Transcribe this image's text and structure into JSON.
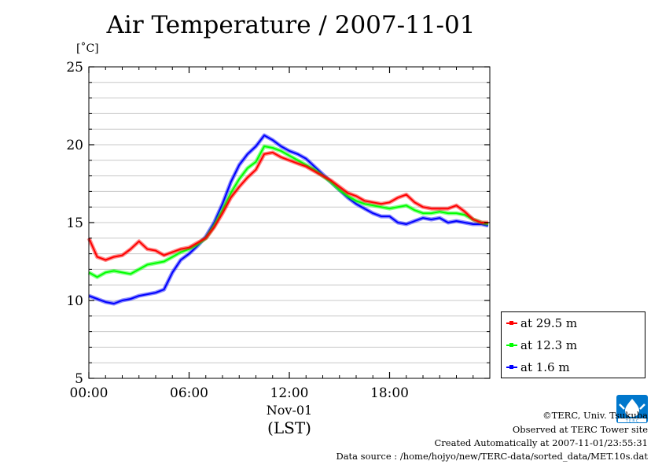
{
  "chart_data": {
    "type": "line",
    "title": "Air Temperature / 2007-11-01",
    "ylabel": "[˚C]",
    "xlabel": "(LST)",
    "x_date_label": "Nov-01",
    "x_ticks": [
      "00:00",
      "06:00",
      "12:00",
      "18:00"
    ],
    "x_tick_hours": [
      0,
      6,
      12,
      18
    ],
    "xlim_hours": [
      0,
      24
    ],
    "ylim": [
      5,
      25
    ],
    "y_ticks": [
      5,
      10,
      15,
      20,
      25
    ],
    "y_grid_step": 1,
    "grid": true,
    "legend_position": "bottom-right",
    "x_hours": [
      0,
      0.5,
      1,
      1.5,
      2,
      2.5,
      3,
      3.5,
      4,
      4.5,
      5,
      5.5,
      6,
      6.5,
      7,
      7.5,
      8,
      8.5,
      9,
      9.5,
      10,
      10.5,
      11,
      11.5,
      12,
      12.5,
      13,
      13.5,
      14,
      14.5,
      15,
      15.5,
      16,
      16.5,
      17,
      17.5,
      18,
      18.5,
      19,
      19.5,
      20,
      20.5,
      21,
      21.5,
      22,
      22.5,
      23,
      23.5,
      23.9
    ],
    "series": [
      {
        "name": "at 29.5 m",
        "color": "#ff0000",
        "values": [
          14.0,
          12.8,
          12.6,
          12.8,
          12.9,
          13.3,
          13.8,
          13.3,
          13.2,
          12.9,
          13.1,
          13.3,
          13.4,
          13.7,
          14.0,
          14.7,
          15.6,
          16.6,
          17.3,
          17.9,
          18.4,
          19.4,
          19.5,
          19.2,
          19.0,
          18.8,
          18.6,
          18.3,
          18.0,
          17.7,
          17.3,
          16.9,
          16.7,
          16.4,
          16.3,
          16.2,
          16.3,
          16.6,
          16.8,
          16.3,
          16.0,
          15.9,
          15.9,
          15.9,
          16.1,
          15.7,
          15.2,
          15.0,
          15.0
        ]
      },
      {
        "name": "at 12.3 m",
        "color": "#00ff00",
        "values": [
          11.8,
          11.5,
          11.8,
          11.9,
          11.8,
          11.7,
          12.0,
          12.3,
          12.4,
          12.5,
          12.8,
          13.1,
          13.3,
          13.6,
          14.0,
          14.8,
          15.8,
          16.9,
          17.8,
          18.5,
          18.9,
          19.9,
          19.8,
          19.6,
          19.3,
          19.0,
          18.7,
          18.4,
          18.0,
          17.6,
          17.1,
          16.7,
          16.4,
          16.2,
          16.1,
          16.0,
          15.9,
          16.0,
          16.1,
          15.8,
          15.6,
          15.6,
          15.7,
          15.6,
          15.6,
          15.5,
          15.2,
          15.0,
          14.9
        ]
      },
      {
        "name": "at 1.6 m",
        "color": "#0000ff",
        "values": [
          10.3,
          10.1,
          9.9,
          9.8,
          10.0,
          10.1,
          10.3,
          10.4,
          10.5,
          10.7,
          11.8,
          12.6,
          13.0,
          13.5,
          14.1,
          15.0,
          16.2,
          17.6,
          18.7,
          19.4,
          19.9,
          20.6,
          20.3,
          19.9,
          19.6,
          19.4,
          19.1,
          18.6,
          18.1,
          17.6,
          17.1,
          16.6,
          16.2,
          15.9,
          15.6,
          15.4,
          15.4,
          15.0,
          14.9,
          15.1,
          15.3,
          15.2,
          15.3,
          15.0,
          15.1,
          15.0,
          14.9,
          14.9,
          14.8
        ]
      }
    ]
  },
  "credits": {
    "copyright": "©TERC, Univ. Tsukuba",
    "site": "Observed at TERC Tower site",
    "created": "Created Automatically at 2007-11-01/23:55:31",
    "source": "Data source : /home/hojyo/new/TERC-data/sorted_data/MET.10s.dat"
  },
  "logo": {
    "icon": "terc-logo-icon",
    "color": "#0077cc"
  }
}
